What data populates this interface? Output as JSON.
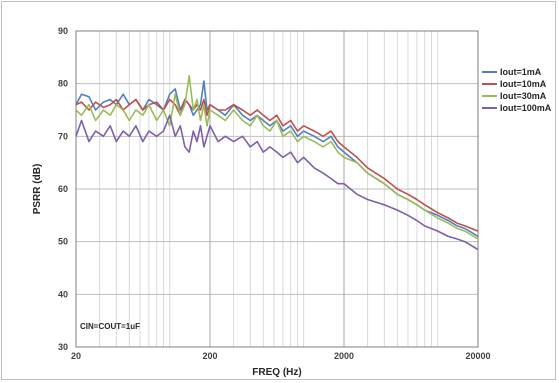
{
  "chart_data": {
    "type": "line",
    "title": "",
    "xlabel": "FREQ (Hz)",
    "ylabel": "PSRR (dB)",
    "x_scale": "log",
    "xlim": [
      20,
      20000
    ],
    "ylim": [
      30,
      90
    ],
    "x_tick_labels": [
      "20",
      "200",
      "2000",
      "20000"
    ],
    "x_ticks": [
      20,
      200,
      2000,
      20000
    ],
    "y_ticks": [
      30,
      40,
      50,
      60,
      70,
      80,
      90
    ],
    "grid": "on",
    "legend_position": "right",
    "annotation": "CIN=COUT=1uF",
    "series": [
      {
        "name": "Iout=1mA",
        "color": "#4f81bd",
        "points": [
          [
            20,
            76
          ],
          [
            22,
            78
          ],
          [
            25,
            77.5
          ],
          [
            28,
            75
          ],
          [
            32,
            76.5
          ],
          [
            36,
            77
          ],
          [
            40,
            76
          ],
          [
            45,
            78
          ],
          [
            50,
            76
          ],
          [
            56,
            77
          ],
          [
            63,
            75
          ],
          [
            70,
            77
          ],
          [
            80,
            76
          ],
          [
            90,
            75
          ],
          [
            100,
            78
          ],
          [
            110,
            79
          ],
          [
            120,
            75
          ],
          [
            130,
            77
          ],
          [
            140,
            76
          ],
          [
            150,
            74
          ],
          [
            160,
            75
          ],
          [
            170,
            76
          ],
          [
            180,
            80.5
          ],
          [
            190,
            75
          ],
          [
            200,
            76
          ],
          [
            230,
            75
          ],
          [
            260,
            74
          ],
          [
            300,
            76
          ],
          [
            350,
            74
          ],
          [
            400,
            73
          ],
          [
            450,
            74
          ],
          [
            500,
            73
          ],
          [
            560,
            72
          ],
          [
            630,
            73
          ],
          [
            700,
            71
          ],
          [
            800,
            72
          ],
          [
            900,
            70
          ],
          [
            1000,
            71
          ],
          [
            1200,
            70
          ],
          [
            1400,
            69
          ],
          [
            1600,
            70
          ],
          [
            1800,
            68
          ],
          [
            2000,
            67
          ],
          [
            2500,
            65
          ],
          [
            3000,
            63
          ],
          [
            4000,
            61
          ],
          [
            5000,
            59
          ],
          [
            6000,
            58
          ],
          [
            7000,
            57
          ],
          [
            8000,
            56
          ],
          [
            10000,
            55
          ],
          [
            12000,
            54
          ],
          [
            14000,
            53
          ],
          [
            16000,
            52.5
          ],
          [
            20000,
            51
          ]
        ]
      },
      {
        "name": "Iout=10mA",
        "color": "#c0504d",
        "points": [
          [
            20,
            76
          ],
          [
            22,
            76.5
          ],
          [
            25,
            75
          ],
          [
            28,
            76.5
          ],
          [
            32,
            75.5
          ],
          [
            36,
            76
          ],
          [
            40,
            77
          ],
          [
            45,
            75
          ],
          [
            50,
            76
          ],
          [
            56,
            77
          ],
          [
            63,
            75
          ],
          [
            70,
            76
          ],
          [
            80,
            76.5
          ],
          [
            90,
            75
          ],
          [
            100,
            77
          ],
          [
            110,
            76
          ],
          [
            120,
            74
          ],
          [
            130,
            77
          ],
          [
            140,
            76
          ],
          [
            150,
            75
          ],
          [
            160,
            76
          ],
          [
            170,
            75
          ],
          [
            180,
            77
          ],
          [
            190,
            74
          ],
          [
            200,
            76
          ],
          [
            230,
            75
          ],
          [
            260,
            75
          ],
          [
            300,
            76
          ],
          [
            350,
            75
          ],
          [
            400,
            74
          ],
          [
            450,
            75
          ],
          [
            500,
            74
          ],
          [
            560,
            73
          ],
          [
            630,
            74
          ],
          [
            700,
            72
          ],
          [
            800,
            73
          ],
          [
            900,
            71
          ],
          [
            1000,
            72
          ],
          [
            1200,
            71
          ],
          [
            1400,
            70
          ],
          [
            1600,
            71
          ],
          [
            1800,
            69
          ],
          [
            2000,
            68
          ],
          [
            2500,
            66
          ],
          [
            3000,
            64
          ],
          [
            4000,
            62
          ],
          [
            5000,
            60
          ],
          [
            6000,
            59
          ],
          [
            7000,
            58
          ],
          [
            8000,
            57
          ],
          [
            10000,
            55.5
          ],
          [
            12000,
            54.5
          ],
          [
            14000,
            53.5
          ],
          [
            16000,
            53
          ],
          [
            20000,
            52
          ]
        ]
      },
      {
        "name": "Iout=30mA",
        "color": "#9bbb59",
        "points": [
          [
            20,
            75
          ],
          [
            22,
            74
          ],
          [
            25,
            76
          ],
          [
            28,
            73
          ],
          [
            32,
            75
          ],
          [
            36,
            74
          ],
          [
            40,
            76
          ],
          [
            45,
            75
          ],
          [
            50,
            73
          ],
          [
            56,
            75
          ],
          [
            63,
            74
          ],
          [
            70,
            76
          ],
          [
            80,
            73
          ],
          [
            90,
            75
          ],
          [
            100,
            72
          ],
          [
            110,
            78
          ],
          [
            120,
            74
          ],
          [
            130,
            76
          ],
          [
            140,
            81.5
          ],
          [
            150,
            75
          ],
          [
            160,
            77
          ],
          [
            170,
            73
          ],
          [
            180,
            76
          ],
          [
            190,
            72
          ],
          [
            200,
            75
          ],
          [
            230,
            74
          ],
          [
            260,
            73
          ],
          [
            300,
            75
          ],
          [
            350,
            73
          ],
          [
            400,
            72
          ],
          [
            450,
            74
          ],
          [
            500,
            72
          ],
          [
            560,
            71
          ],
          [
            630,
            73
          ],
          [
            700,
            70
          ],
          [
            800,
            71
          ],
          [
            900,
            69
          ],
          [
            1000,
            70
          ],
          [
            1200,
            69
          ],
          [
            1400,
            68
          ],
          [
            1600,
            69
          ],
          [
            1800,
            67
          ],
          [
            2000,
            66
          ],
          [
            2500,
            65
          ],
          [
            3000,
            63
          ],
          [
            4000,
            61
          ],
          [
            5000,
            59
          ],
          [
            6000,
            58
          ],
          [
            7000,
            57
          ],
          [
            8000,
            56
          ],
          [
            10000,
            54.5
          ],
          [
            12000,
            53.5
          ],
          [
            14000,
            52.5
          ],
          [
            16000,
            52
          ],
          [
            20000,
            50.5
          ]
        ]
      },
      {
        "name": "Iout=100mA",
        "color": "#7f60a8",
        "points": [
          [
            20,
            70
          ],
          [
            22,
            73
          ],
          [
            25,
            69
          ],
          [
            28,
            71
          ],
          [
            32,
            70
          ],
          [
            36,
            72
          ],
          [
            40,
            69
          ],
          [
            45,
            71
          ],
          [
            50,
            70
          ],
          [
            56,
            72
          ],
          [
            63,
            69
          ],
          [
            70,
            71
          ],
          [
            80,
            70
          ],
          [
            90,
            71
          ],
          [
            100,
            74
          ],
          [
            110,
            70
          ],
          [
            120,
            72
          ],
          [
            130,
            68
          ],
          [
            140,
            67
          ],
          [
            150,
            71
          ],
          [
            160,
            69
          ],
          [
            170,
            72
          ],
          [
            180,
            68
          ],
          [
            190,
            70
          ],
          [
            200,
            72
          ],
          [
            230,
            69
          ],
          [
            260,
            70
          ],
          [
            300,
            69
          ],
          [
            350,
            70
          ],
          [
            400,
            68
          ],
          [
            450,
            69
          ],
          [
            500,
            67
          ],
          [
            560,
            68
          ],
          [
            630,
            67
          ],
          [
            700,
            66
          ],
          [
            800,
            67
          ],
          [
            900,
            65
          ],
          [
            1000,
            66
          ],
          [
            1200,
            64
          ],
          [
            1400,
            63
          ],
          [
            1600,
            62
          ],
          [
            1800,
            61
          ],
          [
            2000,
            61
          ],
          [
            2500,
            59
          ],
          [
            3000,
            58
          ],
          [
            4000,
            57
          ],
          [
            5000,
            56
          ],
          [
            6000,
            55
          ],
          [
            7000,
            54
          ],
          [
            8000,
            53
          ],
          [
            10000,
            52
          ],
          [
            12000,
            51
          ],
          [
            14000,
            50.5
          ],
          [
            16000,
            50
          ],
          [
            20000,
            48.5
          ]
        ]
      }
    ]
  }
}
